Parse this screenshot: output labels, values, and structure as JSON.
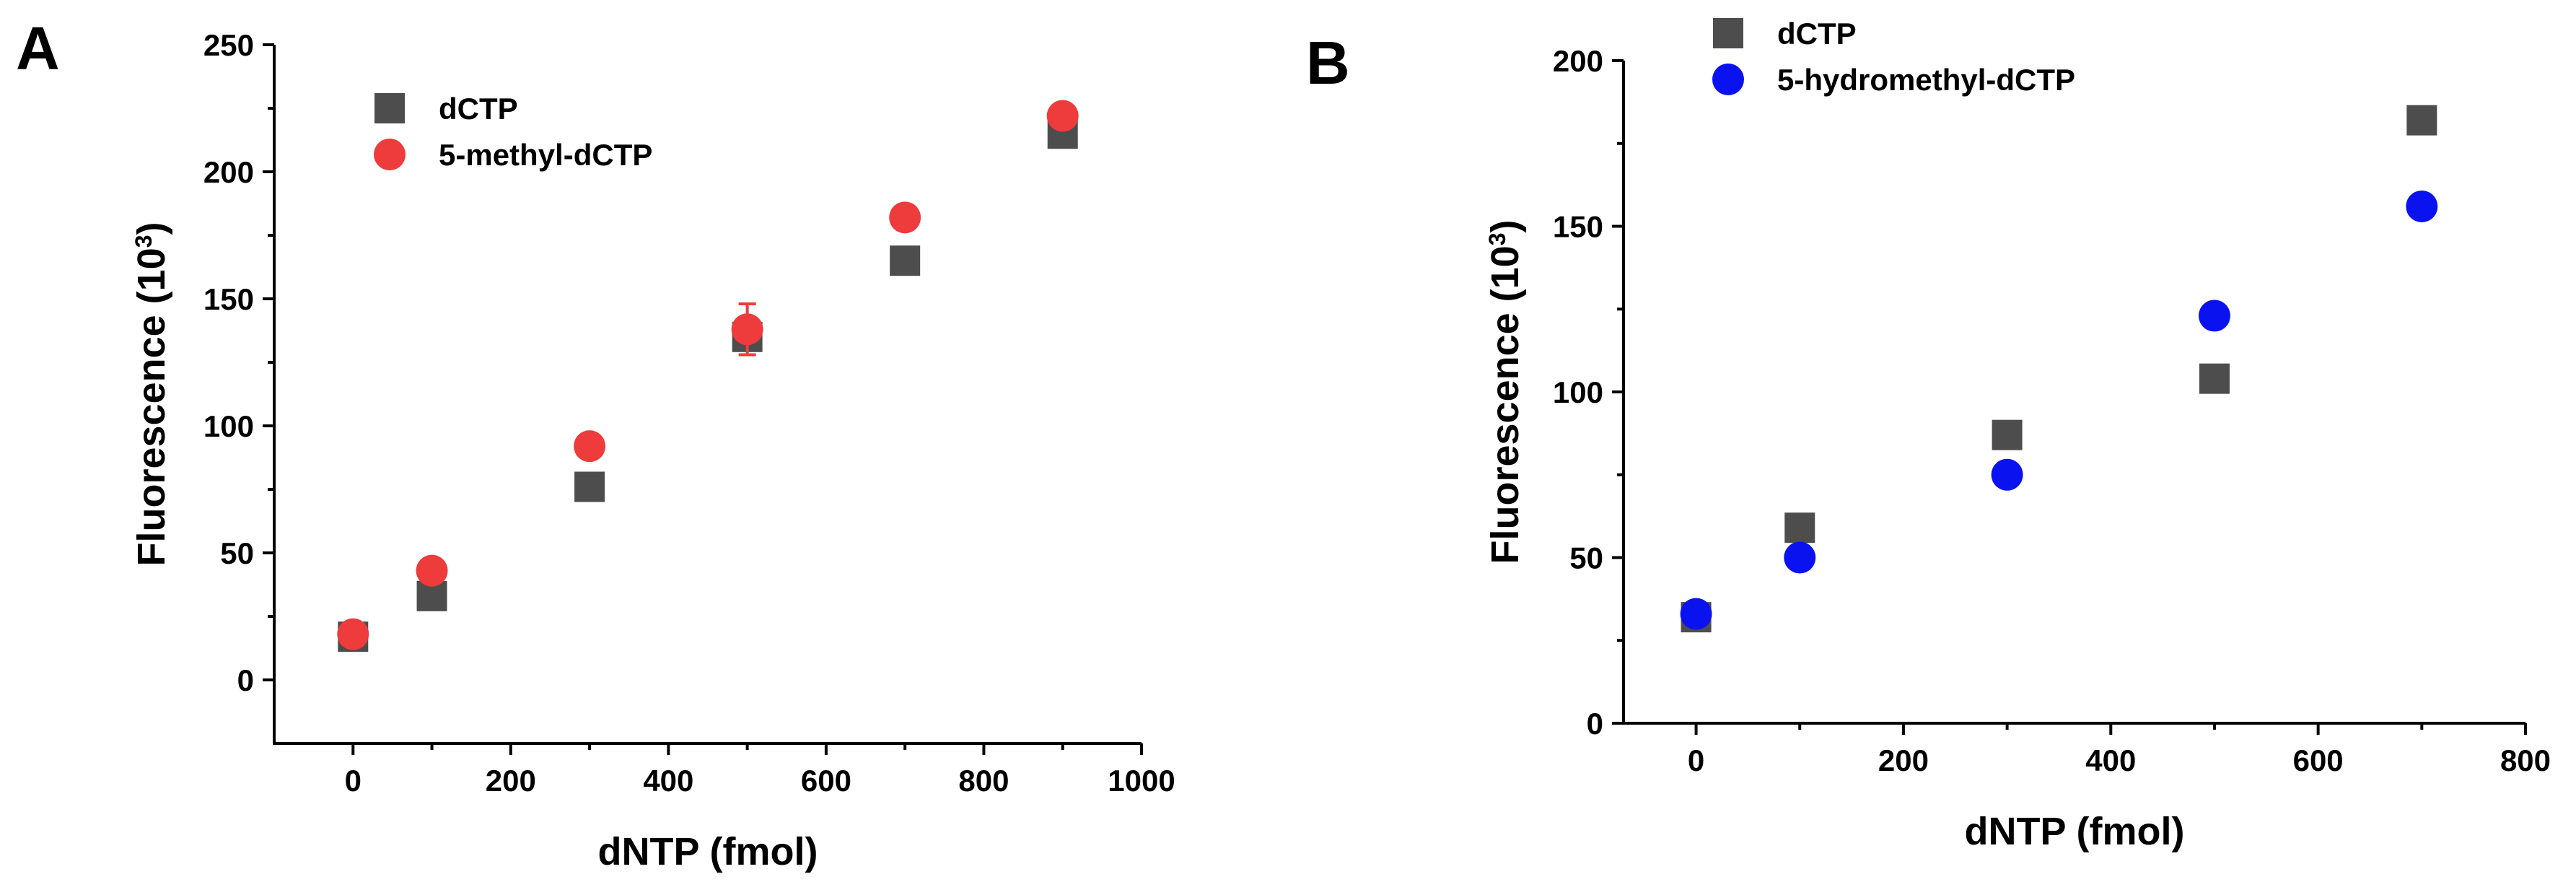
{
  "chart_data": [
    {
      "panel": "A",
      "type": "scatter",
      "xlabel": "dNTP (fmol)",
      "ylabel": "Fluorescence (10",
      "ylabel_sup": "3",
      "ylabel_close": ")",
      "xlim": [
        -100,
        1000
      ],
      "ylim": [
        -25,
        250
      ],
      "xticks": [
        0,
        200,
        400,
        600,
        800,
        1000
      ],
      "yticks": [
        0,
        50,
        100,
        150,
        200,
        250
      ],
      "legend_position": "top-left",
      "series": [
        {
          "name": "dCTP",
          "marker": "square",
          "color": "#4d4d4d",
          "x": [
            0,
            100,
            300,
            500,
            700,
            900
          ],
          "y": [
            17,
            33,
            76,
            135,
            165,
            215
          ]
        },
        {
          "name": "5-methyl-dCTP",
          "marker": "circle",
          "color": "#ee3b3b",
          "x": [
            0,
            100,
            300,
            500,
            700,
            900
          ],
          "y": [
            18,
            43,
            92,
            138,
            182,
            222
          ],
          "yerr": [
            2,
            2,
            2,
            10,
            2,
            2
          ]
        }
      ]
    },
    {
      "panel": "B",
      "type": "scatter",
      "xlabel": "dNTP (fmol)",
      "ylabel": "Fluorescence (10",
      "ylabel_sup": "3",
      "ylabel_close": ")",
      "xlim": [
        -70,
        800
      ],
      "ylim": [
        0,
        200
      ],
      "xticks": [
        0,
        200,
        400,
        600,
        800
      ],
      "yticks": [
        0,
        50,
        100,
        150,
        200
      ],
      "legend_position": "top-left",
      "series": [
        {
          "name": "dCTP",
          "marker": "square",
          "color": "#4d4d4d",
          "x": [
            0,
            100,
            300,
            500,
            700
          ],
          "y": [
            32,
            59,
            87,
            104,
            182
          ]
        },
        {
          "name": "5-hydromethyl-dCTP",
          "marker": "circle",
          "color": "#0a12f0",
          "x": [
            0,
            100,
            300,
            500,
            700
          ],
          "y": [
            33,
            50,
            75,
            123,
            156
          ]
        }
      ]
    }
  ]
}
